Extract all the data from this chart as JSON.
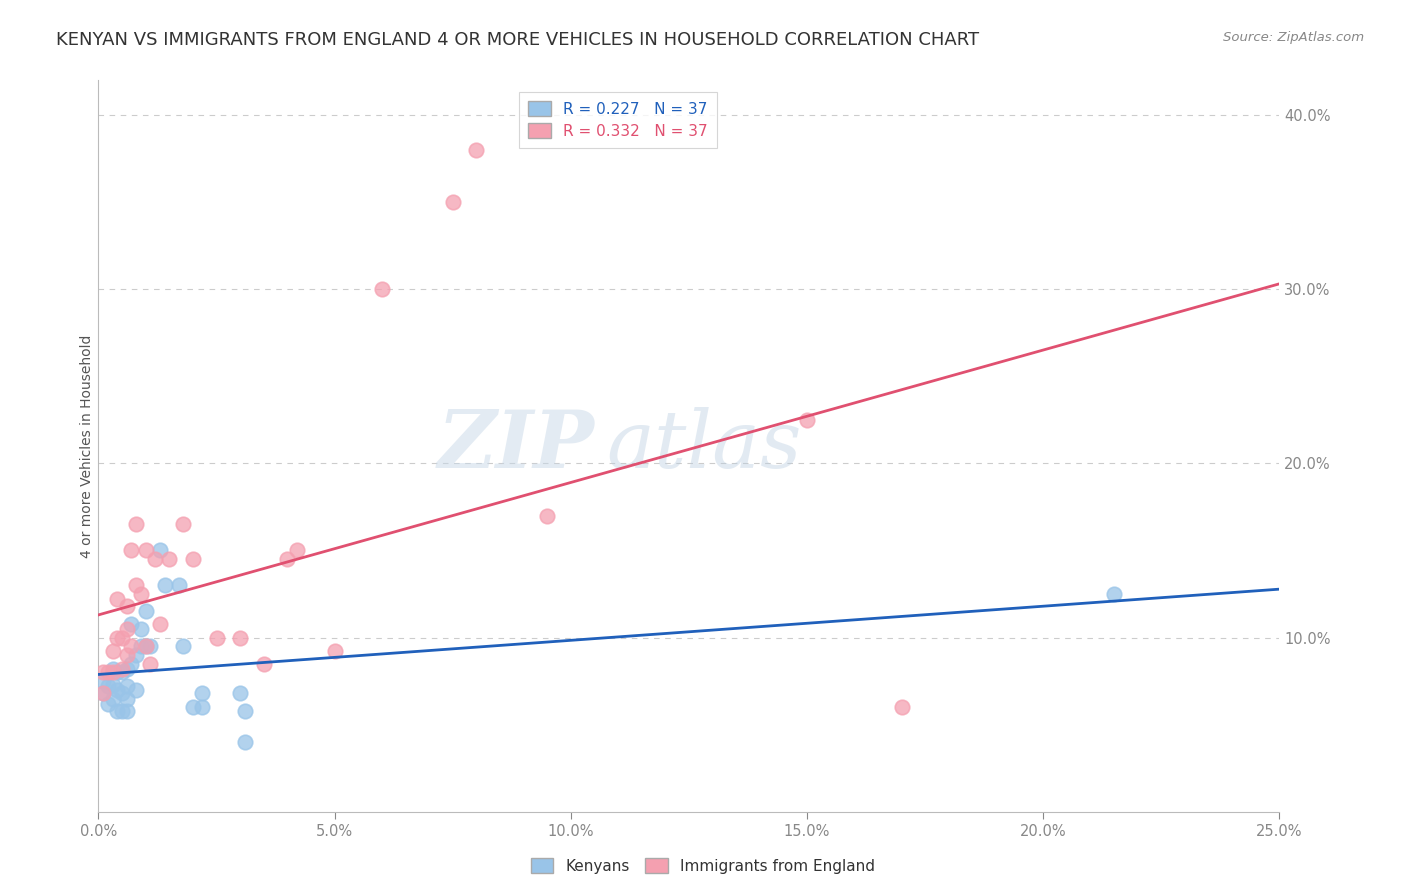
{
  "title": "KENYAN VS IMMIGRANTS FROM ENGLAND 4 OR MORE VEHICLES IN HOUSEHOLD CORRELATION CHART",
  "source": "Source: ZipAtlas.com",
  "ylabel_text": "4 or more Vehicles in Household",
  "xlim": [
    0.0,
    0.25
  ],
  "ylim": [
    0.0,
    0.42
  ],
  "xtick_labels": [
    "0.0%",
    "5.0%",
    "10.0%",
    "15.0%",
    "20.0%",
    "25.0%"
  ],
  "xtick_vals": [
    0.0,
    0.05,
    0.1,
    0.15,
    0.2,
    0.25
  ],
  "ytick_labels": [
    "10.0%",
    "20.0%",
    "30.0%",
    "40.0%"
  ],
  "ytick_vals": [
    0.1,
    0.2,
    0.3,
    0.4
  ],
  "legend_entries": [
    {
      "label": "R = 0.227   N = 37"
    },
    {
      "label": "R = 0.332   N = 37"
    }
  ],
  "legend_labels": [
    "Kenyans",
    "Immigrants from England"
  ],
  "kenyan_x": [
    0.001,
    0.001,
    0.002,
    0.002,
    0.003,
    0.003,
    0.003,
    0.004,
    0.004,
    0.004,
    0.005,
    0.005,
    0.005,
    0.006,
    0.006,
    0.006,
    0.006,
    0.007,
    0.007,
    0.008,
    0.008,
    0.009,
    0.009,
    0.01,
    0.01,
    0.011,
    0.013,
    0.014,
    0.017,
    0.018,
    0.02,
    0.022,
    0.022,
    0.03,
    0.031,
    0.031,
    0.215
  ],
  "kenyan_y": [
    0.068,
    0.075,
    0.062,
    0.072,
    0.065,
    0.073,
    0.082,
    0.058,
    0.07,
    0.08,
    0.058,
    0.068,
    0.08,
    0.058,
    0.065,
    0.072,
    0.082,
    0.085,
    0.108,
    0.07,
    0.09,
    0.095,
    0.105,
    0.095,
    0.115,
    0.095,
    0.15,
    0.13,
    0.13,
    0.095,
    0.06,
    0.06,
    0.068,
    0.068,
    0.058,
    0.04,
    0.125
  ],
  "england_x": [
    0.001,
    0.001,
    0.002,
    0.003,
    0.003,
    0.004,
    0.004,
    0.005,
    0.005,
    0.006,
    0.006,
    0.006,
    0.007,
    0.007,
    0.008,
    0.008,
    0.009,
    0.01,
    0.01,
    0.011,
    0.012,
    0.013,
    0.015,
    0.018,
    0.02,
    0.025,
    0.03,
    0.035,
    0.04,
    0.042,
    0.05,
    0.06,
    0.075,
    0.08,
    0.17,
    0.095,
    0.15
  ],
  "england_y": [
    0.068,
    0.08,
    0.08,
    0.08,
    0.092,
    0.1,
    0.122,
    0.082,
    0.1,
    0.09,
    0.105,
    0.118,
    0.095,
    0.15,
    0.13,
    0.165,
    0.125,
    0.095,
    0.15,
    0.085,
    0.145,
    0.108,
    0.145,
    0.165,
    0.145,
    0.1,
    0.1,
    0.085,
    0.145,
    0.15,
    0.092,
    0.3,
    0.35,
    0.38,
    0.06,
    0.17,
    0.225
  ],
  "kenyan_color": "#99c4e8",
  "england_color": "#f4a0b0",
  "kenyan_line_color": "#2060bb",
  "england_line_color": "#e05070",
  "watermark_zip": "ZIP",
  "watermark_atlas": "atlas",
  "background_color": "#ffffff",
  "grid_color": "#cccccc",
  "title_color": "#333333",
  "axis_color": "#4477cc",
  "title_fontsize": 13,
  "label_fontsize": 10,
  "tick_fontsize": 10.5,
  "source_fontsize": 9.5
}
